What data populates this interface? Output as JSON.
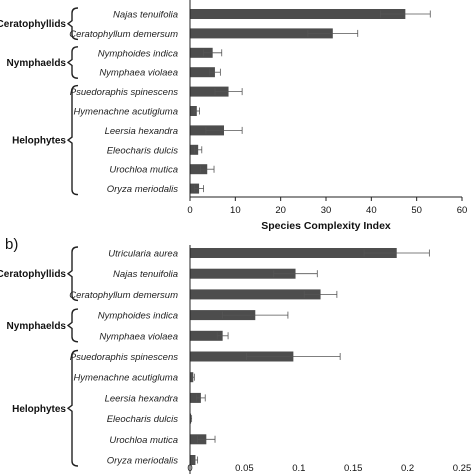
{
  "chart_data": [
    {
      "panel_label": "",
      "type": "bar",
      "orientation": "horizontal",
      "categories": [
        "Najas tenuifolia",
        "Ceratophyllum demersum",
        "Nymphoides indica",
        "Nymphaea violaea",
        "Psuedoraphis spinescens",
        "Hymenachne acutigluma",
        "Leersia hexandra",
        "Eleocharis dulcis",
        "Urochloa mutica",
        "Oryza meriodalis"
      ],
      "values": [
        47.5,
        31.5,
        5.0,
        5.5,
        8.5,
        1.5,
        7.5,
        1.8,
        3.8,
        2.0
      ],
      "errors": [
        5.5,
        5.5,
        2.0,
        1.2,
        3.0,
        0.6,
        4.0,
        0.8,
        1.5,
        1.0
      ],
      "groups": [
        {
          "label": "Ceratophyllids",
          "members": [
            "Najas tenuifolia",
            "Ceratophyllum demersum"
          ]
        },
        {
          "label": "Nymphaelds",
          "members": [
            "Nymphoides indica",
            "Nymphaea violaea"
          ]
        },
        {
          "label": "Helophytes",
          "members": [
            "Psuedoraphis spinescens",
            "Hymenachne acutigluma",
            "Leersia hexandra",
            "Eleocharis dulcis",
            "Urochloa mutica",
            "Oryza meriodalis"
          ]
        }
      ],
      "xlabel": "Species Complexity Index",
      "xlim": [
        0,
        60
      ],
      "xticks": [
        0,
        10,
        20,
        30,
        40,
        50,
        60
      ],
      "xtick_labels": [
        "0",
        "10",
        "20",
        "30",
        "40",
        "50",
        "60"
      ],
      "bar_color": "#4d4d4d"
    },
    {
      "panel_label": "b)",
      "type": "bar",
      "orientation": "horizontal",
      "categories": [
        "Utricularia aurea",
        "Najas tenuifolia",
        "Ceratophyllum demersum",
        "Nymphoides indica",
        "Nymphaea violaea",
        "Psuedoraphis spinescens",
        "Hymenachne acutigluma",
        "Leersia hexandra",
        "Eleocharis dulcis",
        "Urochloa mutica",
        "Oryza meriodalis"
      ],
      "values": [
        0.19,
        0.097,
        0.12,
        0.06,
        0.03,
        0.095,
        0.003,
        0.01,
        0.001,
        0.015,
        0.005
      ],
      "errors": [
        0.03,
        0.02,
        0.015,
        0.03,
        0.005,
        0.043,
        0.001,
        0.004,
        0.0005,
        0.008,
        0.002
      ],
      "groups": [
        {
          "label": "Ceratophyllids",
          "members": [
            "Utricularia aurea",
            "Najas tenuifolia",
            "Ceratophyllum demersum"
          ]
        },
        {
          "label": "Nymphaelds",
          "members": [
            "Nymphoides indica",
            "Nymphaea violaea"
          ]
        },
        {
          "label": "Helophytes",
          "members": [
            "Psuedoraphis spinescens",
            "Hymenachne acutigluma",
            "Leersia hexandra",
            "Eleocharis dulcis",
            "Urochloa mutica",
            "Oryza meriodalis"
          ]
        }
      ],
      "xlabel": "",
      "xlim": [
        0,
        0.25
      ],
      "xticks": [
        0,
        0.05,
        0.1,
        0.15,
        0.2,
        0.25
      ],
      "xtick_labels": [
        "0",
        "0.05",
        "0.1",
        "0.15",
        "0.2",
        "0.25"
      ],
      "bar_color": "#4d4d4d"
    }
  ]
}
